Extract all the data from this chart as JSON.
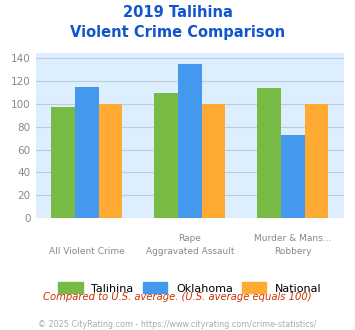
{
  "title_line1": "2019 Talihina",
  "title_line2": "Violent Crime Comparison",
  "cat_labels_top": [
    "",
    "Rape",
    "Murder & Mans..."
  ],
  "cat_labels_bot": [
    "All Violent Crime",
    "Aggravated Assault",
    "Robbery"
  ],
  "groups": {
    "Talihina": [
      97,
      110,
      114
    ],
    "Oklahoma": [
      115,
      135,
      73
    ],
    "National": [
      100,
      100,
      100
    ]
  },
  "colors": {
    "Talihina": "#77bb44",
    "Oklahoma": "#4499ee",
    "National": "#ffaa33"
  },
  "ylim": [
    0,
    145
  ],
  "yticks": [
    0,
    20,
    40,
    60,
    80,
    100,
    120,
    140
  ],
  "grid_color": "#bbccdd",
  "plot_bg": "#ddeeff",
  "title_color": "#1155cc",
  "footer_text": "Compared to U.S. average. (U.S. average equals 100)",
  "footer_color": "#cc3300",
  "copyright_text": "© 2025 CityRating.com - https://www.cityrating.com/crime-statistics/",
  "copyright_color": "#aaaaaa",
  "legend_labels": [
    "Talihina",
    "Oklahoma",
    "National"
  ]
}
